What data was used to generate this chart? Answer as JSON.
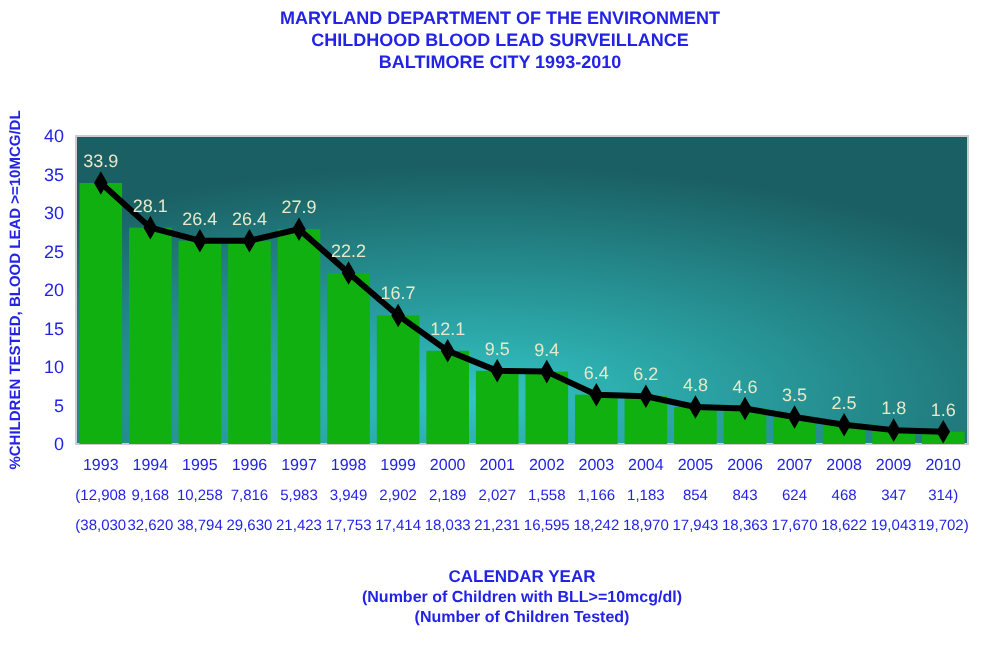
{
  "chart_data": {
    "type": "bar",
    "title": "MARYLAND DEPARTMENT OF THE ENVIRONMENT",
    "subtitle": "CHILDHOOD BLOOD LEAD SURVEILLANCE\nBALTIMORE CITY  1993-2010",
    "ylabel": "%CHILDREN TESTED, BLOOD LEAD >=10MCG/DL",
    "categories": [
      "1993",
      "1994",
      "1995",
      "1996",
      "1997",
      "1998",
      "1999",
      "2000",
      "2001",
      "2002",
      "2003",
      "2004",
      "2005",
      "2006",
      "2007",
      "2008",
      "2009",
      "2010"
    ],
    "series": [
      {
        "color": "#11b011",
        "values": [
          33.9,
          28.1,
          26.4,
          26.4,
          27.9,
          22.2,
          16.7,
          12.1,
          9.5,
          9.4,
          6.4,
          6.2,
          4.8,
          4.6,
          3.5,
          2.5,
          1.8,
          1.6
        ]
      },
      {
        "type": "line",
        "color": "#000000",
        "marker": "diamond",
        "values": [
          33.9,
          28.1,
          26.4,
          26.4,
          27.9,
          22.2,
          16.7,
          12.1,
          9.5,
          9.4,
          6.4,
          6.2,
          4.8,
          4.6,
          3.5,
          2.5,
          1.8,
          1.6
        ],
        "value_labels": [
          "33.9",
          "28.1",
          "26.4",
          "26.4",
          "27.9",
          "22.2",
          "16.7",
          "12.1",
          "9.5",
          "9.4",
          "6.4",
          "6.2",
          "4.8",
          "4.6",
          "3.5",
          "2.5",
          "1.8",
          "1.6"
        ]
      }
    ],
    "ylim": [
      0,
      40
    ],
    "yticks": [
      0,
      5,
      10,
      15,
      20,
      25,
      30,
      35,
      40
    ],
    "annotations": [
      "(12,908",
      "9,168",
      "10,258",
      "7,816",
      "5,983",
      "3,949",
      "2,902",
      "2,189",
      "2,027",
      "1,558",
      "1,166",
      "1,183",
      "854",
      "843",
      "624",
      "468",
      "347",
      "314)",
      "(38,030",
      "32,620",
      "38,794",
      "29,630",
      "21,423",
      "17,753",
      "17,414",
      "18,033",
      "21,231",
      "16,595",
      "18,242",
      "18,970",
      "17,943",
      "18,363",
      "17,670",
      "18,622",
      "19,043",
      "19,702)",
      "CALENDAR YEAR",
      "(Number of Children with BLL>=10mcg/dl)",
      "(Number of Children Tested)"
    ]
  }
}
